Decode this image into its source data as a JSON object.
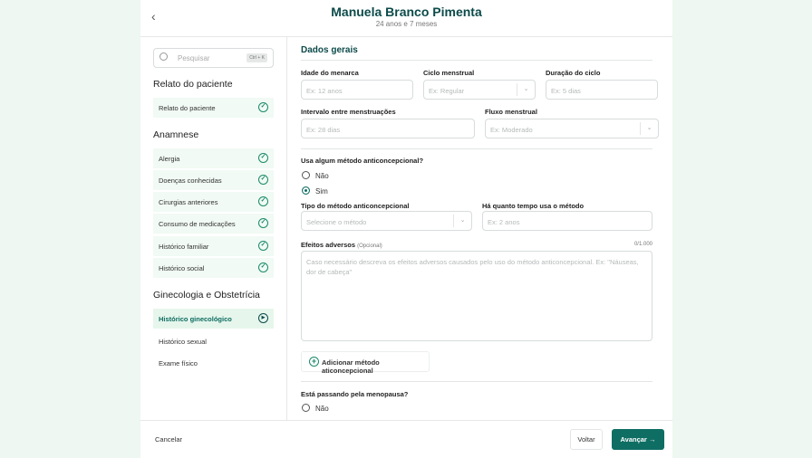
{
  "header": {
    "title": "Manuela Branco Pimenta",
    "subtitle": "24 anos e 7 meses",
    "back_icon": "‹"
  },
  "sidebar": {
    "search": {
      "placeholder": "Pesquisar",
      "shortcut": "Ctrl + K"
    },
    "groups": [
      {
        "title": "Relato do paciente",
        "items": [
          {
            "label": "Relato do paciente",
            "status": "done"
          }
        ]
      },
      {
        "title": "Anamnese",
        "items": [
          {
            "label": "Alergia",
            "status": "done"
          },
          {
            "label": "Doenças conhecidas",
            "status": "done"
          },
          {
            "label": "Cirurgias anteriores",
            "status": "done"
          },
          {
            "label": "Consumo de medicações",
            "status": "done"
          },
          {
            "label": "Histórico familiar",
            "status": "done"
          },
          {
            "label": "Histórico social",
            "status": "done"
          }
        ]
      },
      {
        "title": "Ginecologia e Obstetrícia",
        "items": [
          {
            "label": "Histórico ginecológico",
            "status": "active"
          },
          {
            "label": "Histórico sexual",
            "status": "pending"
          },
          {
            "label": "Exame físico",
            "status": "pending"
          }
        ]
      }
    ]
  },
  "form": {
    "section": "Dados gerais",
    "idade": {
      "label": "Idade do menarca",
      "placeholder": "Ex: 12 anos"
    },
    "ciclo": {
      "label": "Ciclo menstrual",
      "placeholder": "Ex: Regular"
    },
    "duracao": {
      "label": "Duração do ciclo",
      "placeholder": "Ex: 5 dias"
    },
    "intervalo": {
      "label": "Intervalo entre menstruações",
      "placeholder": "Ex: 28 dias"
    },
    "fluxo": {
      "label": "Fluxo menstrual",
      "placeholder": "Ex: Moderado"
    },
    "anticoncepcional": {
      "question": "Usa algum método anticoncepcional?",
      "options": [
        "Não",
        "Sim"
      ],
      "selected": "Sim"
    },
    "tipo": {
      "label": "Tipo do método anticoncepcional",
      "placeholder": "Selecione o método"
    },
    "tempo": {
      "label": "Há quanto tempo usa o método",
      "placeholder": "Ex: 2 anos"
    },
    "efeitos": {
      "label": "Efeitos adversos",
      "optional": "(Opcional)",
      "counter": "0/1.000",
      "placeholder": "Caso necessário descreva os efeitos adversos causados pelo uso do método anticoncepcional. Ex: \"Náuseas, dor de cabeça\""
    },
    "add_method": "Adicionar método aticoncepcional",
    "menopausa": {
      "question": "Está passando pela menopausa?",
      "options": [
        "Não"
      ]
    }
  },
  "footer": {
    "cancel": "Cancelar",
    "back": "Voltar",
    "next": "Avançar"
  },
  "colors": {
    "primary": "#0f6e63",
    "title": "#0c4a4a",
    "done": "#1a8a6a",
    "bg": "#eef7f1"
  }
}
